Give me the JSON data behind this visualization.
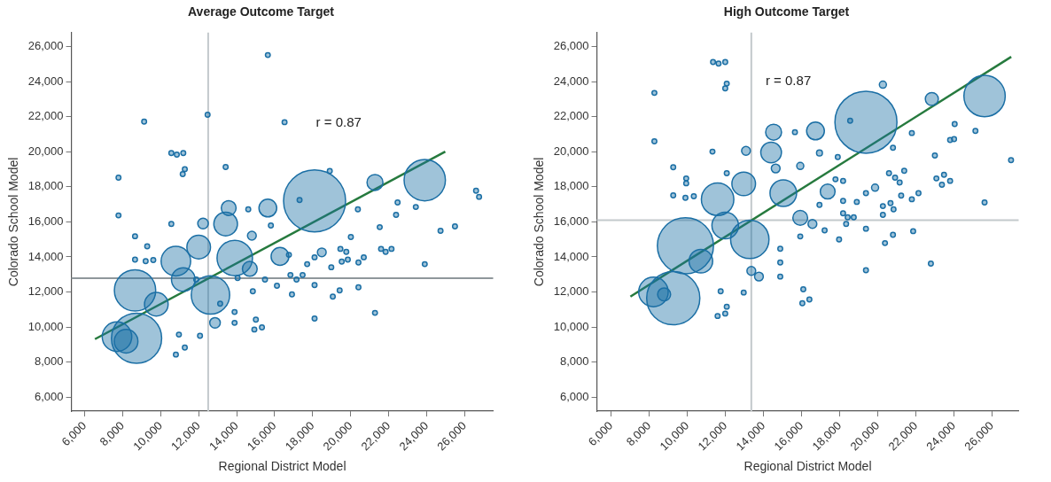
{
  "chart_data": [
    {
      "type": "bubble",
      "title": "Average Outcome Target",
      "xlabel": "Regional District Model",
      "ylabel": "Colorado School Model",
      "xlim": [
        5300,
        27500
      ],
      "ylim": [
        5200,
        26800
      ],
      "xticks": [
        {
          "value": 6000,
          "label": "6,000"
        },
        {
          "value": 8000,
          "label": "8,000"
        },
        {
          "value": 10000,
          "label": "10,000"
        },
        {
          "value": 12000,
          "label": "12,000"
        },
        {
          "value": 14000,
          "label": "14,000"
        },
        {
          "value": 16000,
          "label": "16,000"
        },
        {
          "value": 18000,
          "label": "18,000"
        },
        {
          "value": 20000,
          "label": "20,000"
        },
        {
          "value": 22000,
          "label": "22,000"
        },
        {
          "value": 24000,
          "label": "24,000"
        },
        {
          "value": 26000,
          "label": "26,000"
        }
      ],
      "yticks": [
        {
          "value": 6000,
          "label": "6,000"
        },
        {
          "value": 8000,
          "label": "8,000"
        },
        {
          "value": 10000,
          "label": "10,000"
        },
        {
          "value": 12000,
          "label": "12,000"
        },
        {
          "value": 14000,
          "label": "14,000"
        },
        {
          "value": 16000,
          "label": "16,000"
        },
        {
          "value": 18000,
          "label": "18,000"
        },
        {
          "value": 20000,
          "label": "20,000"
        },
        {
          "value": 22000,
          "label": "22,000"
        },
        {
          "value": 24000,
          "label": "24,000"
        },
        {
          "value": 26000,
          "label": "26,000"
        }
      ],
      "ref_lines": [
        {
          "axis": "x",
          "value": 12500,
          "color": "#c3c9cc"
        },
        {
          "axis": "y",
          "value": 12780,
          "color": "#8f979b"
        }
      ],
      "annotations": [
        "r = 0.87"
      ],
      "series": [
        {
          "color": "#1b6fa5",
          "x": [
            18100,
            23900,
            8650,
            8730,
            7700,
            12620,
            10800,
            13900,
            13420,
            12000,
            15640,
            21280,
            13580,
            16280,
            11190,
            9770,
            8180,
            14690,
            12230,
            14800,
            12860,
            18480,
            15640,
            12470,
            9130,
            7780,
            7780,
            10560,
            10850,
            11190,
            11270,
            11160,
            13420,
            16520,
            18900,
            17310,
            22470,
            22390,
            26600,
            26760,
            23430,
            25490,
            24730,
            20380,
            20010,
            21530,
            15800,
            14610,
            10560,
            8650,
            9290,
            8650,
            9210,
            9610,
            16750,
            18100,
            17710,
            18980,
            19530,
            19850,
            20410,
            20690,
            19460,
            19770,
            21600,
            21840,
            22150,
            23900,
            21280,
            18100,
            19060,
            19420,
            20410,
            18100,
            16830,
            17150,
            17470,
            16910,
            16120,
            13890,
            13890,
            15010,
            14930,
            15330,
            12070,
            10960,
            10800,
            11270,
            14850,
            15490,
            13130,
            11870,
            14050
          ],
          "values": [
            17200,
            18380,
            12090,
            9360,
            9450,
            11830,
            13760,
            13940,
            15880,
            14560,
            16790,
            18250,
            16790,
            14030,
            12710,
            11300,
            9190,
            13320,
            15910,
            15210,
            10240,
            14260,
            25520,
            22110,
            21720,
            18520,
            16370,
            19930,
            19840,
            19930,
            19010,
            18730,
            19130,
            21690,
            18900,
            17250,
            17110,
            16400,
            17780,
            17430,
            16850,
            15740,
            15490,
            16720,
            15140,
            15700,
            15790,
            16720,
            15880,
            15180,
            14610,
            13850,
            13760,
            13820,
            14120,
            13980,
            13590,
            13410,
            13730,
            13850,
            13680,
            13980,
            14460,
            14290,
            14460,
            14290,
            14460,
            13590,
            10810,
            10490,
            11740,
            12090,
            12270,
            12390,
            12970,
            12710,
            12970,
            11860,
            12360,
            10860,
            10240,
            10420,
            9860,
            9980,
            9500,
            9570,
            8430,
            8830,
            12040,
            12710,
            11330,
            12710,
            12800
          ],
          "sizes": [
            1,
            0.444,
            0.444,
            0.655,
            0.227,
            0.383,
            0.227,
            0.327,
            0.145,
            0.145,
            0.082,
            0.066,
            0.057,
            0.082,
            0.145,
            0.145,
            0.145,
            0.057,
            0.029,
            0.02,
            0.029,
            0.02,
            0.006,
            0.006,
            0.006,
            0.006,
            0.006,
            0.006,
            0.006,
            0.006,
            0.006,
            0.006,
            0.006,
            0.006,
            0.006,
            0.006,
            0.006,
            0.006,
            0.006,
            0.006,
            0.006,
            0.006,
            0.006,
            0.006,
            0.006,
            0.006,
            0.006,
            0.006,
            0.006,
            0.006,
            0.006,
            0.006,
            0.006,
            0.006,
            0.006,
            0.006,
            0.006,
            0.006,
            0.006,
            0.006,
            0.006,
            0.006,
            0.006,
            0.006,
            0.006,
            0.006,
            0.006,
            0.006,
            0.006,
            0.006,
            0.006,
            0.006,
            0.006,
            0.006,
            0.006,
            0.006,
            0.006,
            0.006,
            0.006,
            0.006,
            0.006,
            0.006,
            0.006,
            0.006,
            0.006,
            0.006,
            0.006,
            0.006,
            0.006,
            0.006,
            0.006,
            0.006,
            0.006
          ]
        },
        {
          "type": "line",
          "color": "#267a3e",
          "x": [
            6540,
            24980
          ],
          "values": [
            9310,
            20010
          ]
        }
      ]
    },
    {
      "type": "bubble",
      "title": "High Outcome Target",
      "xlabel": "Regional District Model",
      "ylabel": "Colorado School Model",
      "xlim": [
        5250,
        27400
      ],
      "ylim": [
        5200,
        26800
      ],
      "xticks": [
        {
          "value": 6000,
          "label": "6,000"
        },
        {
          "value": 8000,
          "label": "8,000"
        },
        {
          "value": 10000,
          "label": "10,000"
        },
        {
          "value": 12000,
          "label": "12,000"
        },
        {
          "value": 14000,
          "label": "14,000"
        },
        {
          "value": 16000,
          "label": "16,000"
        },
        {
          "value": 18000,
          "label": "18,000"
        },
        {
          "value": 20000,
          "label": "20,000"
        },
        {
          "value": 22000,
          "label": "22,000"
        },
        {
          "value": 24000,
          "label": "24,000"
        },
        {
          "value": 26000,
          "label": "26,000"
        }
      ],
      "yticks": [
        {
          "value": 6000,
          "label": "6,000"
        },
        {
          "value": 8000,
          "label": "8,000"
        },
        {
          "value": 10000,
          "label": "10,000"
        },
        {
          "value": 12000,
          "label": "12,000"
        },
        {
          "value": 14000,
          "label": "14,000"
        },
        {
          "value": 16000,
          "label": "16,000"
        },
        {
          "value": 18000,
          "label": "18,000"
        },
        {
          "value": 20000,
          "label": "20,000"
        },
        {
          "value": 22000,
          "label": "22,000"
        },
        {
          "value": 24000,
          "label": "24,000"
        },
        {
          "value": 26000,
          "label": "26,000"
        }
      ],
      "ref_lines": [
        {
          "axis": "x",
          "value": 13360,
          "color": "#c3c9cc"
        },
        {
          "axis": "y",
          "value": 16100,
          "color": "#c3c9cc"
        }
      ],
      "annotations": [
        "r = 0.87"
      ],
      "series": [
        {
          "color": "#1b6fa5",
          "x": [
            19380,
            25610,
            9900,
            9260,
            8220,
            13280,
            11590,
            15040,
            12960,
            14400,
            14530,
            16730,
            22840,
            20270,
            11990,
            10710,
            8780,
            15930,
            17370,
            14640,
            13080,
            15930,
            16940,
            19860,
            13760,
            13360,
            16570,
            11350,
            11640,
            11990,
            12070,
            11990,
            8270,
            8270,
            11320,
            9260,
            9940,
            9940,
            9260,
            9900,
            10340,
            12070,
            15650,
            18550,
            24040,
            24010,
            23800,
            25130,
            27000,
            25610,
            22790,
            19380,
            21790,
            20800,
            23000,
            23080,
            23480,
            23800,
            23370,
            22140,
            21790,
            21390,
            20590,
            20910,
            21150,
            20670,
            20830,
            20270,
            21230,
            20270,
            21860,
            20800,
            20380,
            19380,
            19380,
            18900,
            18180,
            17780,
            17900,
            18180,
            18180,
            18420,
            18740,
            18340,
            17970,
            17210,
            16940,
            15930,
            16090,
            16410,
            16040,
            14880,
            14880,
            14880,
            12960,
            11750,
            12070,
            11990,
            11590
          ],
          "values": [
            21690,
            23180,
            14640,
            11650,
            12000,
            15000,
            17290,
            17640,
            18170,
            19960,
            21120,
            21190,
            23010,
            23830,
            15790,
            13760,
            11860,
            16230,
            17730,
            19050,
            20050,
            19190,
            19930,
            17950,
            12880,
            13200,
            15880,
            25120,
            25030,
            25120,
            23890,
            23620,
            23360,
            20600,
            20010,
            19120,
            18480,
            18200,
            17510,
            17370,
            17460,
            18780,
            21120,
            21770,
            21580,
            20720,
            20670,
            21190,
            19520,
            17110,
            13620,
            13240,
            21070,
            20230,
            19790,
            18480,
            18690,
            18340,
            18120,
            17640,
            17290,
            18920,
            18780,
            18520,
            18250,
            17070,
            16720,
            16900,
            17500,
            16400,
            15470,
            15260,
            14790,
            17640,
            15610,
            17140,
            17200,
            18430,
            19700,
            18340,
            16490,
            16260,
            16260,
            15880,
            15000,
            15520,
            16970,
            15170,
            12150,
            11570,
            11360,
            13680,
            12880,
            14470,
            11970,
            12040,
            11160,
            10770,
            10630
          ],
          "sizes": [
            1,
            0.444,
            0.819,
            0.735,
            0.227,
            0.383,
            0.274,
            0.184,
            0.145,
            0.111,
            0.066,
            0.082,
            0.044,
            0.013,
            0.184,
            0.145,
            0.044,
            0.057,
            0.057,
            0.02,
            0.02,
            0.013,
            0.009,
            0.013,
            0.02,
            0.02,
            0.02,
            0.006,
            0.006,
            0.006,
            0.006,
            0.006,
            0.006,
            0.006,
            0.006,
            0.006,
            0.006,
            0.006,
            0.006,
            0.006,
            0.006,
            0.006,
            0.006,
            0.006,
            0.006,
            0.006,
            0.006,
            0.006,
            0.006,
            0.006,
            0.006,
            0.006,
            0.006,
            0.006,
            0.006,
            0.006,
            0.006,
            0.006,
            0.006,
            0.006,
            0.006,
            0.006,
            0.006,
            0.006,
            0.006,
            0.006,
            0.006,
            0.006,
            0.006,
            0.006,
            0.006,
            0.006,
            0.006,
            0.006,
            0.006,
            0.006,
            0.006,
            0.006,
            0.006,
            0.006,
            0.006,
            0.006,
            0.006,
            0.006,
            0.006,
            0.006,
            0.006,
            0.006,
            0.006,
            0.006,
            0.006,
            0.006,
            0.006,
            0.006,
            0.006,
            0.006,
            0.006,
            0.006,
            0.006
          ]
        },
        {
          "type": "line",
          "color": "#267a3e",
          "x": [
            7010,
            27010
          ],
          "values": [
            11740,
            25420
          ]
        }
      ]
    }
  ]
}
